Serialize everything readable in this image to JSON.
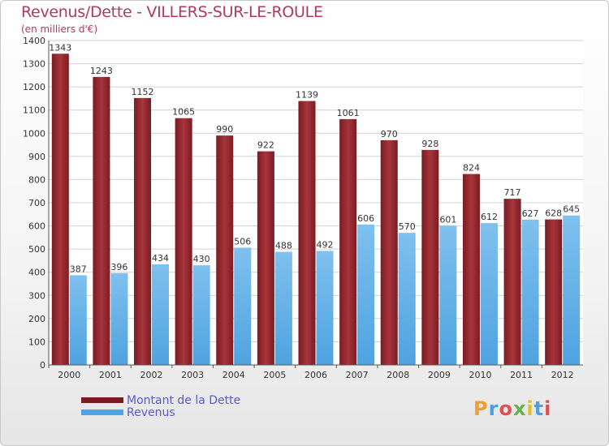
{
  "header": {
    "title": "Revenus/Dette - VILLERS-SUR-LE-ROULE",
    "subtitle": "(en milliers d'€)"
  },
  "legend": {
    "debt_label": "Montant de la Dette",
    "revenue_label": "Revenus"
  },
  "logo": {
    "text": "Proxiti"
  },
  "colors": {
    "debt": "#7a1c22",
    "debt_light": "#a8353c",
    "revenue": "#4fa3e0",
    "revenue_light": "#7fc0ee",
    "grid": "#d0d0d0"
  },
  "chart_data": {
    "type": "bar",
    "title": "Revenus/Dette - VILLERS-SUR-LE-ROULE",
    "ylabel": "(en milliers d'€)",
    "xlabel": "",
    "categories": [
      "2000",
      "2001",
      "2002",
      "2003",
      "2004",
      "2005",
      "2006",
      "2007",
      "2008",
      "2009",
      "2010",
      "2011",
      "2012"
    ],
    "series": [
      {
        "name": "Montant de la Dette",
        "values": [
          1343,
          1243,
          1152,
          1065,
          990,
          922,
          1139,
          1061,
          970,
          928,
          824,
          717,
          628
        ]
      },
      {
        "name": "Revenus",
        "values": [
          387,
          396,
          434,
          430,
          506,
          488,
          492,
          606,
          570,
          601,
          612,
          627,
          645
        ]
      }
    ],
    "ylim": [
      0,
      1400
    ],
    "yticks": [
      0,
      100,
      200,
      300,
      400,
      500,
      600,
      700,
      800,
      900,
      1000,
      1100,
      1200,
      1300,
      1400
    ],
    "grid": true,
    "legend_position": "bottom-left"
  }
}
